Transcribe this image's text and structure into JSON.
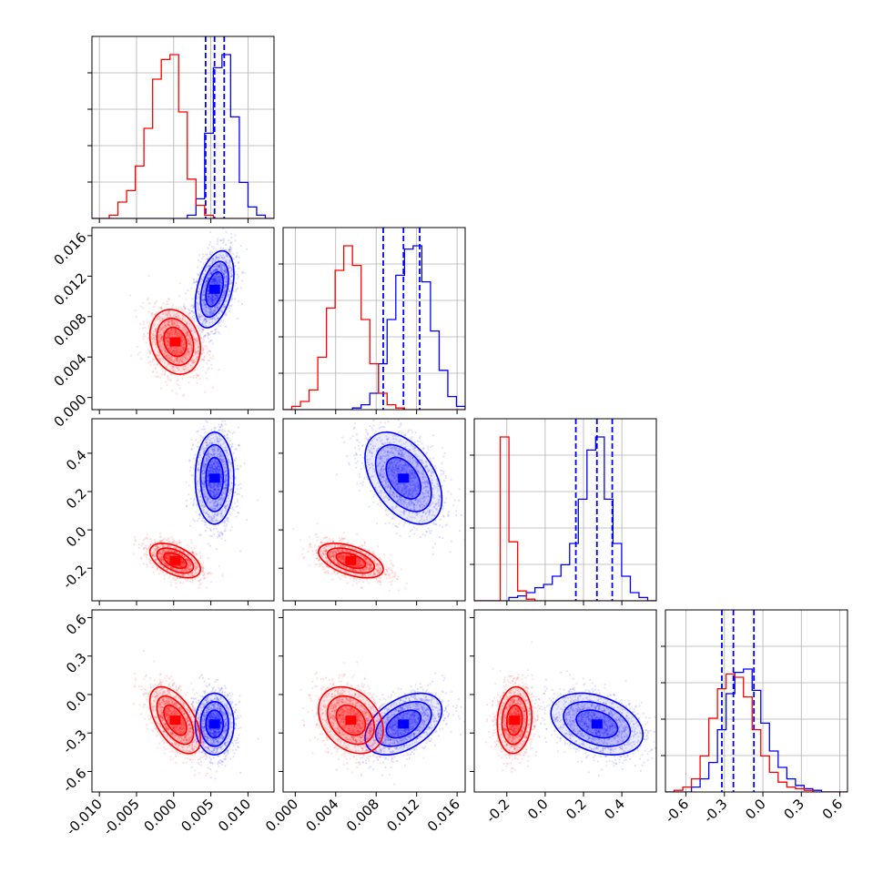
{
  "chart_data": {
    "type": "corner",
    "grid": true,
    "colors": {
      "blue": "#0000ff",
      "red": "#ff0000",
      "grid": "#b0b0b0"
    },
    "params": [
      {
        "range": [
          -0.011,
          0.0135
        ],
        "ticks": [
          "-0.010",
          "-0.005",
          "0.000",
          "0.005",
          "0.010"
        ],
        "tick_values": [
          -0.01,
          -0.005,
          0.0,
          0.005,
          0.01
        ]
      },
      {
        "range": [
          -0.0012,
          0.0168
        ],
        "ticks": [
          "0.000",
          "0.004",
          "0.008",
          "0.012",
          "0.016"
        ],
        "tick_values": [
          0.0,
          0.004,
          0.008,
          0.012,
          0.016
        ]
      },
      {
        "range": [
          -0.37,
          0.58
        ],
        "ticks": [
          "-0.2",
          "0.0",
          "0.2",
          "0.4"
        ],
        "tick_values": [
          -0.2,
          0.0,
          0.2,
          0.4
        ]
      },
      {
        "range": [
          -0.76,
          0.66
        ],
        "ticks": [
          "-0.6",
          "-0.3",
          "0.0",
          "0.3",
          "0.6"
        ],
        "tick_values": [
          -0.6,
          -0.3,
          0.0,
          0.3,
          0.6
        ]
      }
    ],
    "series": [
      {
        "color": "blue",
        "quantiles": [
          [
            0.0043,
            0.0055,
            0.0068
          ],
          [
            0.0087,
            0.0107,
            0.0123
          ],
          [
            0.16,
            0.27,
            0.35
          ],
          [
            -0.32,
            -0.23,
            -0.07
          ]
        ],
        "means": [
          0.0055,
          0.0107,
          0.27,
          -0.23
        ],
        "sds": [
          0.0013,
          0.0019,
          0.12,
          0.12
        ],
        "hist": [
          [
            0.0,
            0.0,
            0.0,
            0.0,
            0.0,
            0.0,
            0.0,
            0.0,
            0.0,
            0.0,
            0.0,
            0.02,
            0.12,
            0.52,
            0.92,
            1.0,
            0.62,
            0.22,
            0.07,
            0.02,
            0.0
          ],
          [
            0.0,
            0.0,
            0.0,
            0.0,
            0.0,
            0.0,
            0.0,
            0.0,
            0.01,
            0.03,
            0.1,
            0.28,
            0.55,
            0.82,
            0.98,
            1.0,
            0.78,
            0.48,
            0.24,
            0.08,
            0.02
          ],
          [
            0.0,
            0.0,
            0.0,
            0.0,
            0.02,
            0.03,
            0.05,
            0.08,
            0.1,
            0.15,
            0.22,
            0.35,
            0.62,
            0.92,
            1.0,
            0.62,
            0.35,
            0.15,
            0.05,
            0.02,
            0.0
          ],
          [
            0.0,
            0.0,
            0.0,
            0.03,
            0.08,
            0.18,
            0.38,
            0.6,
            0.73,
            0.75,
            0.62,
            0.42,
            0.25,
            0.15,
            0.08,
            0.04,
            0.02,
            0.01,
            0.0,
            0.0,
            0.0
          ]
        ]
      },
      {
        "color": "red",
        "quantiles": [],
        "means": [
          0.0002,
          0.0055,
          -0.16,
          -0.2
        ],
        "sds": [
          0.0017,
          0.0016,
          0.045,
          0.13
        ],
        "hist": [
          [
            0.0,
            0.0,
            0.02,
            0.1,
            0.17,
            0.32,
            0.55,
            0.85,
            0.97,
            1.0,
            0.65,
            0.24,
            0.08,
            0.02,
            0.0,
            0.0,
            0.0,
            0.0,
            0.0,
            0.0,
            0.0
          ],
          [
            0.0,
            0.02,
            0.05,
            0.12,
            0.32,
            0.62,
            0.85,
            1.0,
            0.88,
            0.55,
            0.28,
            0.1,
            0.03,
            0.01,
            0.0,
            0.0,
            0.0,
            0.0,
            0.0,
            0.0,
            0.0
          ],
          [
            0.0,
            0.0,
            0.0,
            1.0,
            0.36,
            0.06,
            0.01,
            0.0,
            0.0,
            0.0,
            0.0,
            0.0,
            0.0,
            0.0,
            0.0,
            0.0,
            0.0,
            0.0,
            0.0,
            0.0,
            0.0
          ],
          [
            0.0,
            0.01,
            0.03,
            0.08,
            0.22,
            0.45,
            0.63,
            0.72,
            0.7,
            0.58,
            0.38,
            0.22,
            0.12,
            0.06,
            0.03,
            0.02,
            0.01,
            0.0,
            0.0,
            0.0,
            0.0
          ]
        ]
      }
    ],
    "pair_correlations": {
      "blue": {
        "1,0": 0.4,
        "2,0": 0.0,
        "2,1": -0.45,
        "3,0": 0.0,
        "3,1": 0.45,
        "3,2": -0.35
      },
      "red": {
        "1,0": -0.2,
        "2,0": -0.5,
        "2,1": -0.5,
        "3,0": -0.55,
        "3,1": -0.3,
        "3,2": 0.1
      }
    }
  }
}
